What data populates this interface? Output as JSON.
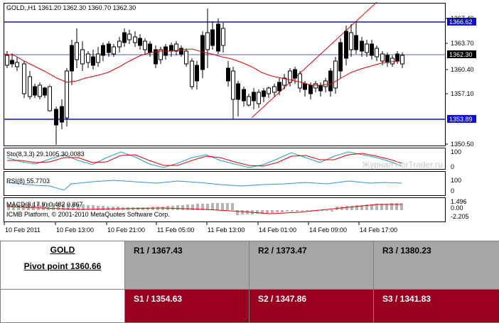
{
  "chart": {
    "header": "GOLD,,H1  1361.20  1362.30  1360.70  1362.30",
    "price_axis": [
      "1367.40",
      "1363.70",
      "1360.40",
      "1357.10",
      "1350.50"
    ],
    "price_tags": {
      "r_line": "1366.62",
      "current": "1362.30",
      "s_line": "1353.89"
    },
    "stoch": {
      "label": "Sto(8,3,3) 29.1005 30.0083",
      "levels": [
        "100",
        "0"
      ]
    },
    "rsi": {
      "label": "RSI(8) 55.7703",
      "levels": [
        "100",
        "0"
      ]
    },
    "macd": {
      "label": "MACD(8,17,9) 0.482 0.867",
      "levels": [
        "1.496",
        "0.00",
        "-2.205"
      ]
    },
    "copyright": "ICMB Platform, © 2001-2010 MetaQuotes Software Corp.",
    "watermark": "Журнал ForTrader.ru",
    "time_axis": [
      "10 Feb 2011",
      "10 Feb 13:00",
      "10 Feb 21:00",
      "11 Feb 05:00",
      "11 Feb 13:00",
      "14 Feb 01:00",
      "14 Feb 09:00",
      "14 Feb 17:00"
    ]
  },
  "table": {
    "symbol": "GOLD",
    "pivot": "Pivot point 1360.66",
    "r1": "R1 / 1367.43",
    "r2": "R2 / 1373.47",
    "r3": "R3 / 1380.23",
    "s1": "S1 / 1354.63",
    "s2": "S2 / 1347.86",
    "s3": "S3 / 1341.83"
  },
  "colors": {
    "resistance_cell": "#a6a6a6",
    "support_cell": "#990020",
    "level_line": "#1010d0",
    "moving_average": "#e00000",
    "stoch_main": "#20a0c0",
    "stoch_signal": "#e00000",
    "rsi": "#3090e0",
    "macd_hist": "#b4b4b4",
    "macd_signal": "#e00000"
  }
}
